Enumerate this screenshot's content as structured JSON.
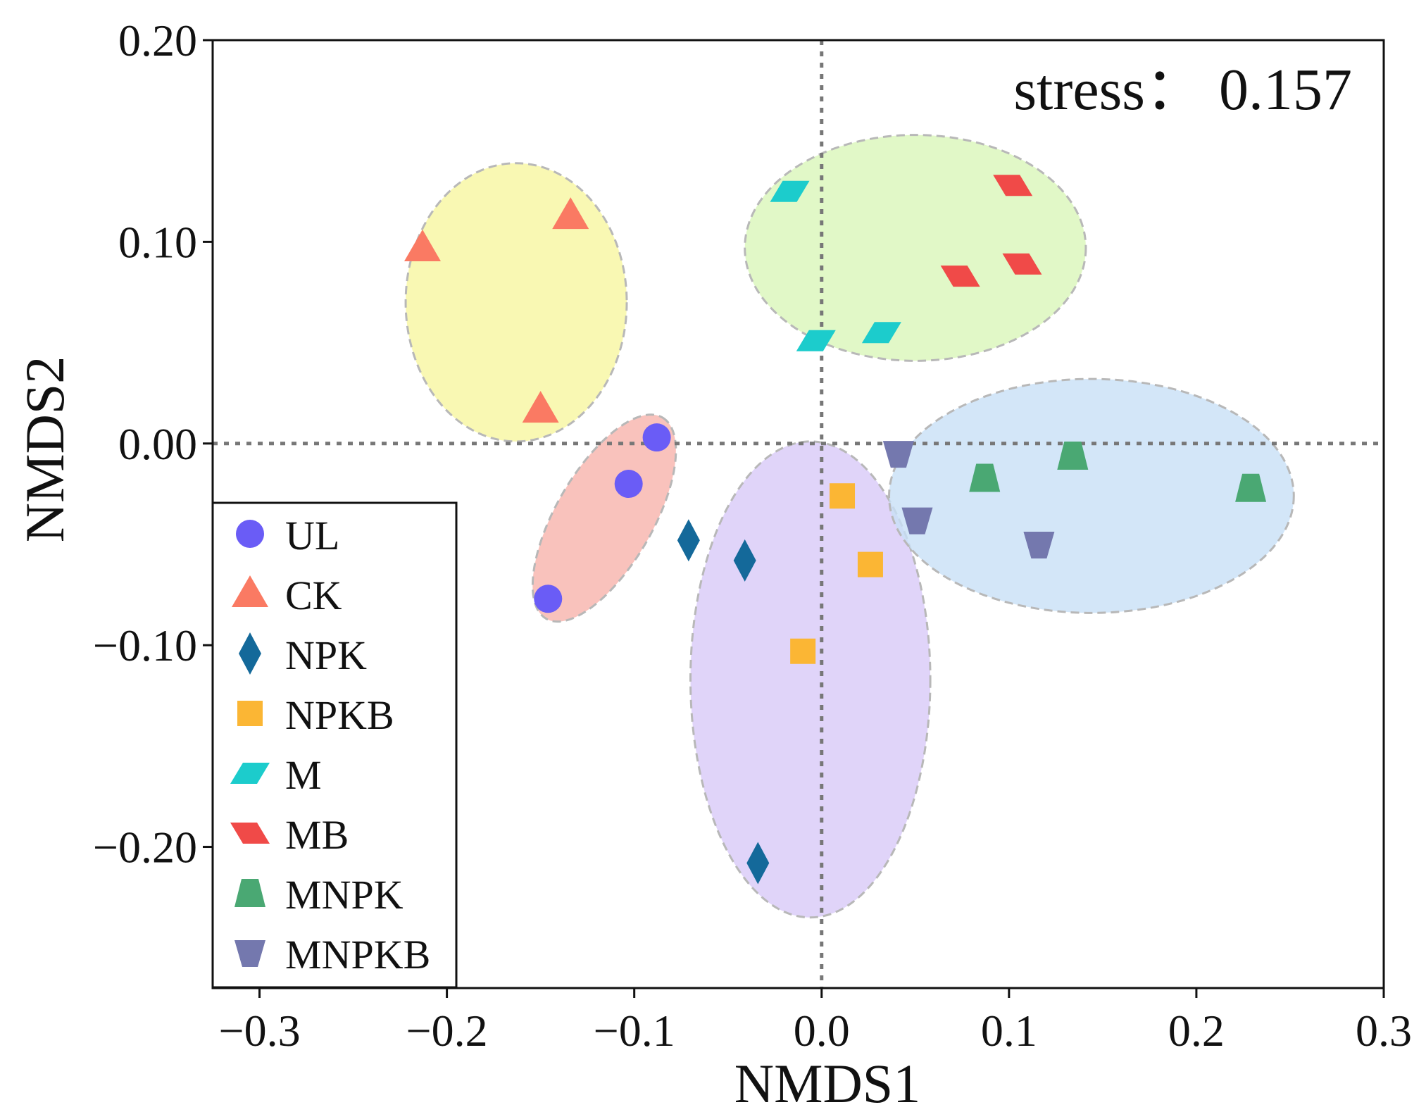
{
  "chart_data": {
    "type": "scatter",
    "title": "",
    "xlabel": "NMDS1",
    "ylabel": "NMDS2",
    "xlim": [
      -0.325,
      0.3
    ],
    "ylim": [
      -0.27,
      0.2
    ],
    "xticks": [
      -0.3,
      -0.2,
      -0.1,
      0.0,
      0.1,
      0.2,
      0.3
    ],
    "xtick_labels": [
      "−0.3",
      "−0.2",
      "−0.1",
      "0.0",
      "0.1",
      "0.2",
      "0.3"
    ],
    "yticks": [
      0.2,
      0.1,
      0.0,
      -0.1,
      -0.2
    ],
    "ytick_labels": [
      "0.20",
      "0.10",
      "0.00",
      "−0.10",
      "−0.20"
    ],
    "annotation": "stress： 0.157",
    "reference_lines": {
      "x": 0.0,
      "y": 0.0,
      "style": "dotted"
    },
    "legend_position": "lower-left",
    "series": [
      {
        "name": "UL",
        "marker": "circle",
        "color": "#6a5cf6",
        "points": [
          [
            -0.088,
            0.003
          ],
          [
            -0.103,
            -0.02
          ],
          [
            -0.146,
            -0.077
          ]
        ]
      },
      {
        "name": "CK",
        "marker": "triangle-up",
        "color": "#fa7a63",
        "points": [
          [
            -0.213,
            0.097
          ],
          [
            -0.134,
            0.113
          ],
          [
            -0.15,
            0.017
          ]
        ]
      },
      {
        "name": "NPK",
        "marker": "diamond",
        "color": "#14699a",
        "points": [
          [
            -0.071,
            -0.048
          ],
          [
            -0.041,
            -0.058
          ],
          [
            -0.034,
            -0.208
          ]
        ]
      },
      {
        "name": "NPKB",
        "marker": "square",
        "color": "#fbb634",
        "points": [
          [
            0.011,
            -0.026
          ],
          [
            0.026,
            -0.06
          ],
          [
            -0.01,
            -0.103
          ]
        ]
      },
      {
        "name": "M",
        "marker": "parallelogram-right",
        "color": "#1ccccc",
        "points": [
          [
            -0.017,
            0.125
          ],
          [
            -0.003,
            0.051
          ],
          [
            0.032,
            0.055
          ]
        ]
      },
      {
        "name": "MB",
        "marker": "parallelogram-left",
        "color": "#f04a48",
        "points": [
          [
            0.102,
            0.128
          ],
          [
            0.074,
            0.083
          ],
          [
            0.107,
            0.089
          ]
        ]
      },
      {
        "name": "MNPK",
        "marker": "trapezoid-up",
        "color": "#4aa873",
        "points": [
          [
            0.134,
            -0.006
          ],
          [
            0.087,
            -0.017
          ],
          [
            0.229,
            -0.022
          ]
        ]
      },
      {
        "name": "MNPKB",
        "marker": "trapezoid-down",
        "color": "#7478ae",
        "points": [
          [
            0.041,
            -0.005
          ],
          [
            0.051,
            -0.038
          ],
          [
            0.116,
            -0.05
          ]
        ]
      }
    ],
    "ellipses": [
      {
        "group": "CK",
        "center": [
          -0.163,
          0.07
        ],
        "radii": [
          0.059,
          0.069
        ],
        "angle": 0,
        "fill": "#f8f6a0"
      },
      {
        "group": "M-MB",
        "center": [
          0.05,
          0.097
        ],
        "radii": [
          0.091,
          0.056
        ],
        "angle": 0,
        "fill": "#d9f6b9"
      },
      {
        "group": "UL",
        "center": [
          -0.116,
          -0.037
        ],
        "radii": [
          0.062,
          0.024
        ],
        "angle": 60,
        "fill": "#f8b3ab"
      },
      {
        "group": "NPK-NPKB",
        "center": [
          -0.006,
          -0.117
        ],
        "radii": [
          0.064,
          0.118
        ],
        "angle": 0,
        "fill": "#d8c9f7"
      },
      {
        "group": "MNPK-MNPKB",
        "center": [
          0.144,
          -0.026
        ],
        "radii": [
          0.108,
          0.058
        ],
        "angle": 0,
        "fill": "#c8e0f6"
      }
    ]
  }
}
